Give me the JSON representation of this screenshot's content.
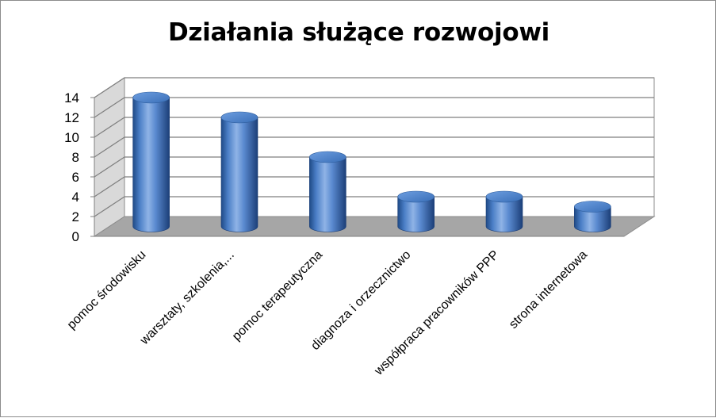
{
  "chart_data": {
    "type": "bar",
    "bar_style": "3d-cylinder",
    "title": "Działania służące rozwojowi",
    "categories": [
      "pomoc środowisku",
      "warsztaty, szkolenia,...",
      "pomoc terapeutyczna",
      "diagnoza i orzecznictwo",
      "współpraca pracowników PPP",
      "strona internetowa"
    ],
    "values": [
      13,
      11,
      7,
      3,
      3,
      2
    ],
    "ylim": [
      0,
      14
    ],
    "yticks": [
      "0",
      "2",
      "4",
      "6",
      "8",
      "10",
      "12",
      "14"
    ],
    "grid": true,
    "legend": "none",
    "colors": {
      "bar": "#4f81bd",
      "bar_dark": "#1f4e8c",
      "bar_light": "#8fb3e6",
      "top": "#5b8fd6",
      "wall": "#ffffff",
      "floor": "#a6a6a6",
      "gridline": "#7f7f7f"
    }
  }
}
